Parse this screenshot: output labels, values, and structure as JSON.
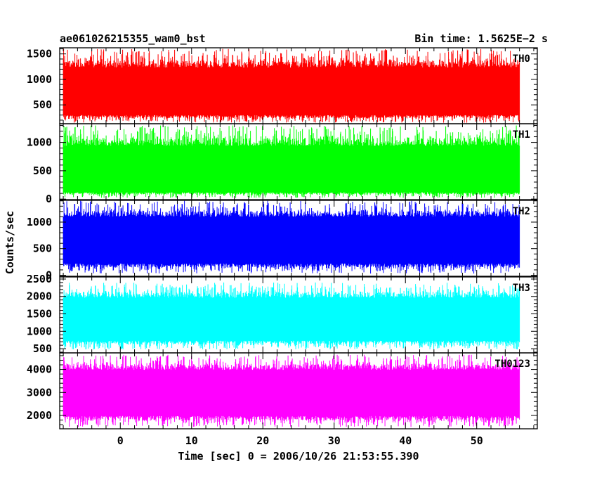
{
  "header": {
    "left_title": "ae061026215355_wam0_bst",
    "right_title": "Bin time: 1.5625E−2 s"
  },
  "chart_data": {
    "type": "line",
    "title": "ae061026215355_wam0_bst",
    "subtitle": "Bin time: 1.5625E−2 s",
    "xlabel": "Time [sec] 0 = 2006/10/26 21:53:55.390",
    "ylabel": "Counts/sec",
    "xlim": [
      -8.5,
      58.5
    ],
    "data_x_range": [
      -8,
      56
    ],
    "x_ticks": [
      0,
      10,
      20,
      30,
      40,
      50
    ],
    "bin_time": 0.015625,
    "grid": false,
    "legend": "none",
    "panels": [
      {
        "name": "TH0",
        "color": "#ff0000",
        "ylim": [
          130,
          1620
        ],
        "y_ticks": [
          500,
          1000,
          1500
        ],
        "series": [
          {
            "name": "TH0",
            "mean": 740,
            "band_low": 300,
            "band_high": 1230,
            "min": 150,
            "max": 1600
          }
        ]
      },
      {
        "name": "TH1",
        "color": "#00ff00",
        "ylim": [
          -10,
          1330
        ],
        "y_ticks": [
          0,
          500,
          1000
        ],
        "series": [
          {
            "name": "TH1",
            "mean": 420,
            "band_low": 120,
            "band_high": 940,
            "min": 20,
            "max": 1300
          }
        ]
      },
      {
        "name": "TH2",
        "color": "#0000ff",
        "ylim": [
          -20,
          1410
        ],
        "y_ticks": [
          0,
          500,
          1000
        ],
        "series": [
          {
            "name": "TH2",
            "mean": 660,
            "band_low": 220,
            "band_high": 1100,
            "min": 30,
            "max": 1400
          }
        ]
      },
      {
        "name": "TH3",
        "color": "#00ffff",
        "ylim": [
          380,
          2560
        ],
        "y_ticks": [
          500,
          1000,
          1500,
          2000,
          2500
        ],
        "series": [
          {
            "name": "TH3",
            "mean": 1350,
            "band_low": 730,
            "band_high": 1960,
            "min": 480,
            "max": 2400
          }
        ]
      },
      {
        "name": "TH0123",
        "color": "#ff00ff",
        "ylim": [
          1420,
          4720
        ],
        "y_ticks": [
          2000,
          3000,
          4000
        ],
        "series": [
          {
            "name": "TH0123",
            "mean": 3000,
            "band_low": 1980,
            "band_high": 3980,
            "min": 1500,
            "max": 4650
          }
        ]
      }
    ]
  }
}
